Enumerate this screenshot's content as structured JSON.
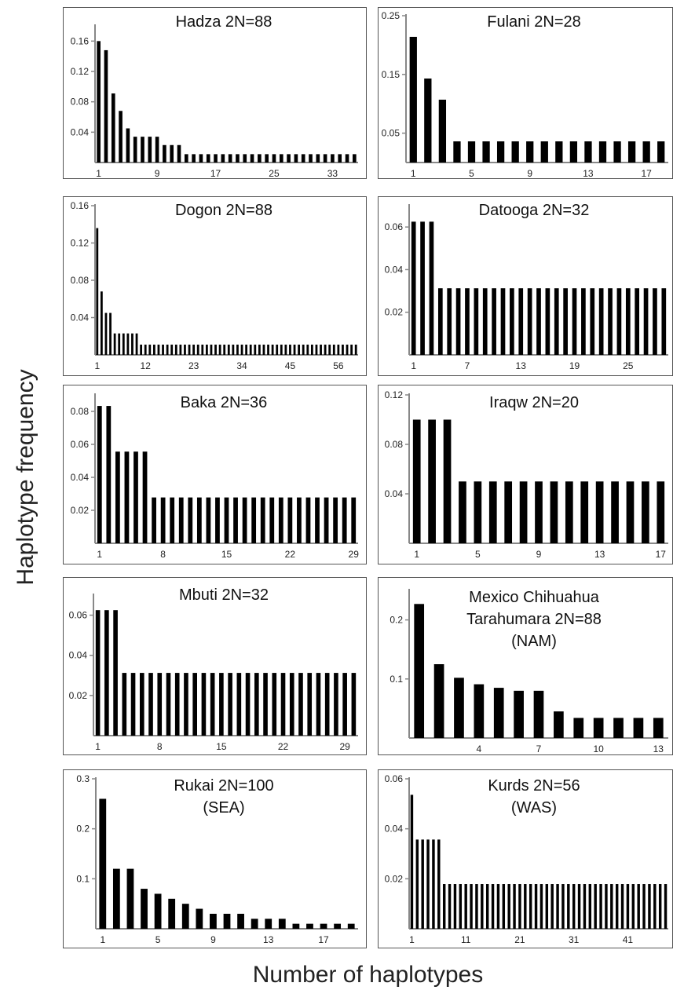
{
  "figure": {
    "ylabel": "Haplotype frequency",
    "xlabel": "Number of haplotypes"
  },
  "chart_data": [
    {
      "type": "bar",
      "title": [
        "Hadza 2N=88"
      ],
      "ylim": [
        0,
        0.18
      ],
      "yticks": [
        0.04,
        0.08,
        0.12,
        0.16
      ],
      "ytick_labels": [
        "0.04",
        "0.08",
        "0.12",
        "0.16"
      ],
      "xticks": [
        "1",
        "9",
        "17",
        "25",
        "33"
      ],
      "values": [
        0.16,
        0.148,
        0.091,
        0.068,
        0.045,
        0.034,
        0.034,
        0.034,
        0.034,
        0.023,
        0.023,
        0.023,
        0.011,
        0.011,
        0.011,
        0.011,
        0.011,
        0.011,
        0.011,
        0.011,
        0.011,
        0.011,
        0.011,
        0.011,
        0.011,
        0.011,
        0.011,
        0.011,
        0.011,
        0.011,
        0.011,
        0.011,
        0.011,
        0.011,
        0.011,
        0.011
      ]
    },
    {
      "type": "bar",
      "title": [
        "Fulani 2N=28"
      ],
      "ylim": [
        0,
        0.25
      ],
      "yticks": [
        0.05,
        0.15,
        0.25
      ],
      "ytick_labels": [
        "0.05",
        "0.15",
        "0.25"
      ],
      "xticks": [
        "1",
        "5",
        "9",
        "13",
        "17"
      ],
      "values": [
        0.214,
        0.143,
        0.107,
        0.036,
        0.036,
        0.036,
        0.036,
        0.036,
        0.036,
        0.036,
        0.036,
        0.036,
        0.036,
        0.036,
        0.036,
        0.036,
        0.036,
        0.036
      ]
    },
    {
      "type": "bar",
      "title": [
        "Dogon 2N=88"
      ],
      "ylim": [
        0,
        0.16
      ],
      "yticks": [
        0.04,
        0.08,
        0.12,
        0.16
      ],
      "ytick_labels": [
        "0.04",
        "0.08",
        "0.12",
        "0.16"
      ],
      "xticks": [
        "1",
        "12",
        "23",
        "34",
        "45",
        "56"
      ],
      "values": [
        0.136,
        0.068,
        0.045,
        0.045,
        0.023,
        0.023,
        0.023,
        0.023,
        0.023,
        0.023,
        0.011,
        0.011,
        0.011,
        0.011,
        0.011,
        0.011,
        0.011,
        0.011,
        0.011,
        0.011,
        0.011,
        0.011,
        0.011,
        0.011,
        0.011,
        0.011,
        0.011,
        0.011,
        0.011,
        0.011,
        0.011,
        0.011,
        0.011,
        0.011,
        0.011,
        0.011,
        0.011,
        0.011,
        0.011,
        0.011,
        0.011,
        0.011,
        0.011,
        0.011,
        0.011,
        0.011,
        0.011,
        0.011,
        0.011,
        0.011,
        0.011,
        0.011,
        0.011,
        0.011,
        0.011,
        0.011,
        0.011,
        0.011,
        0.011,
        0.011
      ]
    },
    {
      "type": "bar",
      "title": [
        "Datooga 2N=32"
      ],
      "ylim": [
        0,
        0.07
      ],
      "yticks": [
        0.02,
        0.04,
        0.06
      ],
      "ytick_labels": [
        "0.02",
        "0.04",
        "0.06"
      ],
      "xticks": [
        "1",
        "7",
        "13",
        "19",
        "25"
      ],
      "values": [
        0.0625,
        0.0625,
        0.0625,
        0.03125,
        0.03125,
        0.03125,
        0.03125,
        0.03125,
        0.03125,
        0.03125,
        0.03125,
        0.03125,
        0.03125,
        0.03125,
        0.03125,
        0.03125,
        0.03125,
        0.03125,
        0.03125,
        0.03125,
        0.03125,
        0.03125,
        0.03125,
        0.03125,
        0.03125,
        0.03125,
        0.03125,
        0.03125,
        0.03125
      ]
    },
    {
      "type": "bar",
      "title": [
        "Baka 2N=36"
      ],
      "ylim": [
        0,
        0.09
      ],
      "yticks": [
        0.02,
        0.04,
        0.06,
        0.08
      ],
      "ytick_labels": [
        "0.02",
        "0.04",
        "0.06",
        "0.08"
      ],
      "xticks": [
        "1",
        "8",
        "15",
        "22",
        "29"
      ],
      "values": [
        0.0833,
        0.0833,
        0.0556,
        0.0556,
        0.0556,
        0.0556,
        0.0278,
        0.0278,
        0.0278,
        0.0278,
        0.0278,
        0.0278,
        0.0278,
        0.0278,
        0.0278,
        0.0278,
        0.0278,
        0.0278,
        0.0278,
        0.0278,
        0.0278,
        0.0278,
        0.0278,
        0.0278,
        0.0278,
        0.0278,
        0.0278,
        0.0278,
        0.0278
      ]
    },
    {
      "type": "bar",
      "title": [
        "Iraqw 2N=20"
      ],
      "ylim": [
        0,
        0.12
      ],
      "yticks": [
        0.04,
        0.08,
        0.12
      ],
      "ytick_labels": [
        "0.04",
        "0.08",
        "0.12"
      ],
      "xticks": [
        "1",
        "5",
        "9",
        "13",
        "17"
      ],
      "values": [
        0.1,
        0.1,
        0.1,
        0.05,
        0.05,
        0.05,
        0.05,
        0.05,
        0.05,
        0.05,
        0.05,
        0.05,
        0.05,
        0.05,
        0.05,
        0.05,
        0.05
      ]
    },
    {
      "type": "bar",
      "title": [
        "Mbuti 2N=32"
      ],
      "ylim": [
        0,
        0.07
      ],
      "yticks": [
        0.02,
        0.04,
        0.06
      ],
      "ytick_labels": [
        "0.02",
        "0.04",
        "0.06"
      ],
      "xticks": [
        "1",
        "8",
        "15",
        "22",
        "29"
      ],
      "values": [
        0.0625,
        0.0625,
        0.0625,
        0.03125,
        0.03125,
        0.03125,
        0.03125,
        0.03125,
        0.03125,
        0.03125,
        0.03125,
        0.03125,
        0.03125,
        0.03125,
        0.03125,
        0.03125,
        0.03125,
        0.03125,
        0.03125,
        0.03125,
        0.03125,
        0.03125,
        0.03125,
        0.03125,
        0.03125,
        0.03125,
        0.03125,
        0.03125,
        0.03125,
        0.03125
      ]
    },
    {
      "type": "bar",
      "title": [
        "Mexico Chihuahua",
        "Tarahumara 2N=88",
        "(NAM)"
      ],
      "ylim": [
        0,
        0.25
      ],
      "yticks": [
        0.1,
        0.2
      ],
      "ytick_labels": [
        "0.1",
        "0.2"
      ],
      "xticks": [
        "4",
        "7",
        "10",
        "13"
      ],
      "values": [
        0.227,
        0.125,
        0.102,
        0.091,
        0.085,
        0.08,
        0.08,
        0.045,
        0.034,
        0.034,
        0.034,
        0.034,
        0.034
      ]
    },
    {
      "type": "bar",
      "title": [
        "Rukai 2N=100",
        "(SEA)"
      ],
      "ylim": [
        0,
        0.3
      ],
      "yticks": [
        0.1,
        0.2,
        0.3
      ],
      "ytick_labels": [
        "0.1",
        "0.2",
        "0.3"
      ],
      "xticks": [
        "1",
        "5",
        "9",
        "13",
        "17"
      ],
      "values": [
        0.26,
        0.12,
        0.12,
        0.08,
        0.07,
        0.06,
        0.05,
        0.04,
        0.03,
        0.03,
        0.03,
        0.02,
        0.02,
        0.02,
        0.01,
        0.01,
        0.01,
        0.01,
        0.01
      ]
    },
    {
      "type": "bar",
      "title": [
        "Kurds 2N=56",
        "(WAS)"
      ],
      "ylim": [
        0,
        0.06
      ],
      "yticks": [
        0.02,
        0.04,
        0.06
      ],
      "ytick_labels": [
        "0.02",
        "0.04",
        "0.06"
      ],
      "xticks": [
        "1",
        "11",
        "21",
        "31",
        "41"
      ],
      "values": [
        0.0536,
        0.0357,
        0.0357,
        0.0357,
        0.0357,
        0.0357,
        0.0179,
        0.0179,
        0.0179,
        0.0179,
        0.0179,
        0.0179,
        0.0179,
        0.0179,
        0.0179,
        0.0179,
        0.0179,
        0.0179,
        0.0179,
        0.0179,
        0.0179,
        0.0179,
        0.0179,
        0.0179,
        0.0179,
        0.0179,
        0.0179,
        0.0179,
        0.0179,
        0.0179,
        0.0179,
        0.0179,
        0.0179,
        0.0179,
        0.0179,
        0.0179,
        0.0179,
        0.0179,
        0.0179,
        0.0179,
        0.0179,
        0.0179,
        0.0179,
        0.0179,
        0.0179,
        0.0179,
        0.0179,
        0.0179
      ]
    }
  ]
}
